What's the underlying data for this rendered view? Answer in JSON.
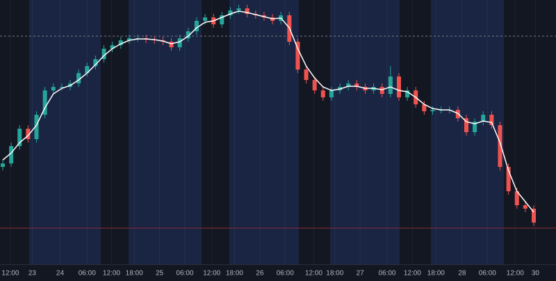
{
  "chart_data": {
    "type": "candlestick",
    "open": [
      130,
      135,
      160,
      185,
      170,
      205,
      240,
      245,
      245,
      250,
      265,
      275,
      285,
      300,
      305,
      312,
      315,
      315,
      313,
      312,
      310,
      302,
      315,
      325,
      340,
      345,
      335,
      348,
      355,
      358,
      350,
      348,
      345,
      340,
      348,
      310,
      270,
      255,
      240,
      230,
      240,
      245,
      250,
      245,
      240,
      245,
      235,
      260,
      230,
      240,
      220,
      210,
      212,
      212,
      212,
      200,
      180,
      195,
      205,
      190,
      130,
      95,
      75,
      70
    ],
    "high": [
      140,
      165,
      190,
      190,
      210,
      245,
      250,
      250,
      255,
      270,
      280,
      290,
      305,
      310,
      317,
      320,
      320,
      320,
      318,
      317,
      315,
      320,
      330,
      345,
      350,
      350,
      353,
      360,
      363,
      363,
      355,
      353,
      350,
      353,
      353,
      315,
      275,
      260,
      245,
      245,
      250,
      255,
      255,
      250,
      250,
      250,
      275,
      265,
      245,
      245,
      225,
      217,
      217,
      217,
      217,
      205,
      200,
      210,
      210,
      195,
      135,
      100,
      80,
      75
    ],
    "low": [
      125,
      130,
      155,
      165,
      165,
      200,
      235,
      240,
      240,
      245,
      260,
      270,
      280,
      295,
      300,
      307,
      310,
      308,
      307,
      305,
      297,
      297,
      310,
      320,
      335,
      330,
      330,
      343,
      350,
      345,
      343,
      340,
      335,
      335,
      305,
      265,
      250,
      235,
      225,
      225,
      235,
      240,
      240,
      235,
      235,
      230,
      230,
      225,
      225,
      215,
      205,
      205,
      207,
      207,
      195,
      175,
      175,
      190,
      185,
      125,
      90,
      70,
      65,
      45
    ],
    "close": [
      135,
      160,
      185,
      170,
      205,
      240,
      245,
      245,
      250,
      265,
      275,
      285,
      300,
      305,
      312,
      315,
      315,
      313,
      312,
      310,
      302,
      315,
      325,
      340,
      345,
      335,
      348,
      355,
      358,
      350,
      348,
      345,
      340,
      348,
      310,
      270,
      255,
      240,
      230,
      240,
      245,
      250,
      245,
      240,
      245,
      235,
      260,
      230,
      240,
      220,
      210,
      212,
      212,
      212,
      200,
      180,
      195,
      205,
      190,
      130,
      95,
      75,
      70,
      50
    ],
    "up_color": "#26a69a",
    "down_color": "#ef5350",
    "moving_average": {
      "color": "#ffffff",
      "values": [
        140,
        150,
        165,
        175,
        190,
        215,
        235,
        243,
        247,
        255,
        265,
        277,
        290,
        300,
        307,
        312,
        314,
        314,
        313,
        311,
        307,
        310,
        318,
        330,
        338,
        340,
        345,
        350,
        354,
        352,
        349,
        346,
        343,
        344,
        330,
        300,
        275,
        258,
        245,
        240,
        242,
        246,
        246,
        243,
        243,
        241,
        245,
        240,
        238,
        230,
        220,
        214,
        212,
        212,
        207,
        195,
        192,
        196,
        194,
        165,
        125,
        95,
        80,
        65
      ]
    },
    "hlines": [
      {
        "value": 318,
        "color": "#787b86",
        "dashed": true
      },
      {
        "value": 42,
        "color": "#8b2c35",
        "dashed": false
      }
    ],
    "xlim": [
      0,
      63
    ],
    "ylim": [
      0,
      370
    ],
    "xticks": [
      {
        "value": 0.9,
        "label": "12:00"
      },
      {
        "value": 3.5,
        "label": "23"
      },
      {
        "value": 6.8,
        "label": "24"
      },
      {
        "value": 10,
        "label": "06:00"
      },
      {
        "value": 12.9,
        "label": "12:00"
      },
      {
        "value": 15.6,
        "label": "18:00"
      },
      {
        "value": 18.6,
        "label": "25"
      },
      {
        "value": 21.6,
        "label": "06:00"
      },
      {
        "value": 24.8,
        "label": "12:00"
      },
      {
        "value": 27.5,
        "label": "18:00"
      },
      {
        "value": 30.5,
        "label": "26"
      },
      {
        "value": 33.5,
        "label": "06:00"
      },
      {
        "value": 36.9,
        "label": "12:00"
      },
      {
        "value": 39.4,
        "label": "18:00"
      },
      {
        "value": 42.4,
        "label": "27"
      },
      {
        "value": 45.6,
        "label": "06:00"
      },
      {
        "value": 48.6,
        "label": "12:00"
      },
      {
        "value": 51.4,
        "label": "18:00"
      },
      {
        "value": 54.5,
        "label": "28"
      },
      {
        "value": 57.5,
        "label": "06:00"
      },
      {
        "value": 60.8,
        "label": "12:00"
      },
      {
        "value": 63.2,
        "label": "30"
      }
    ],
    "grid": true
  }
}
